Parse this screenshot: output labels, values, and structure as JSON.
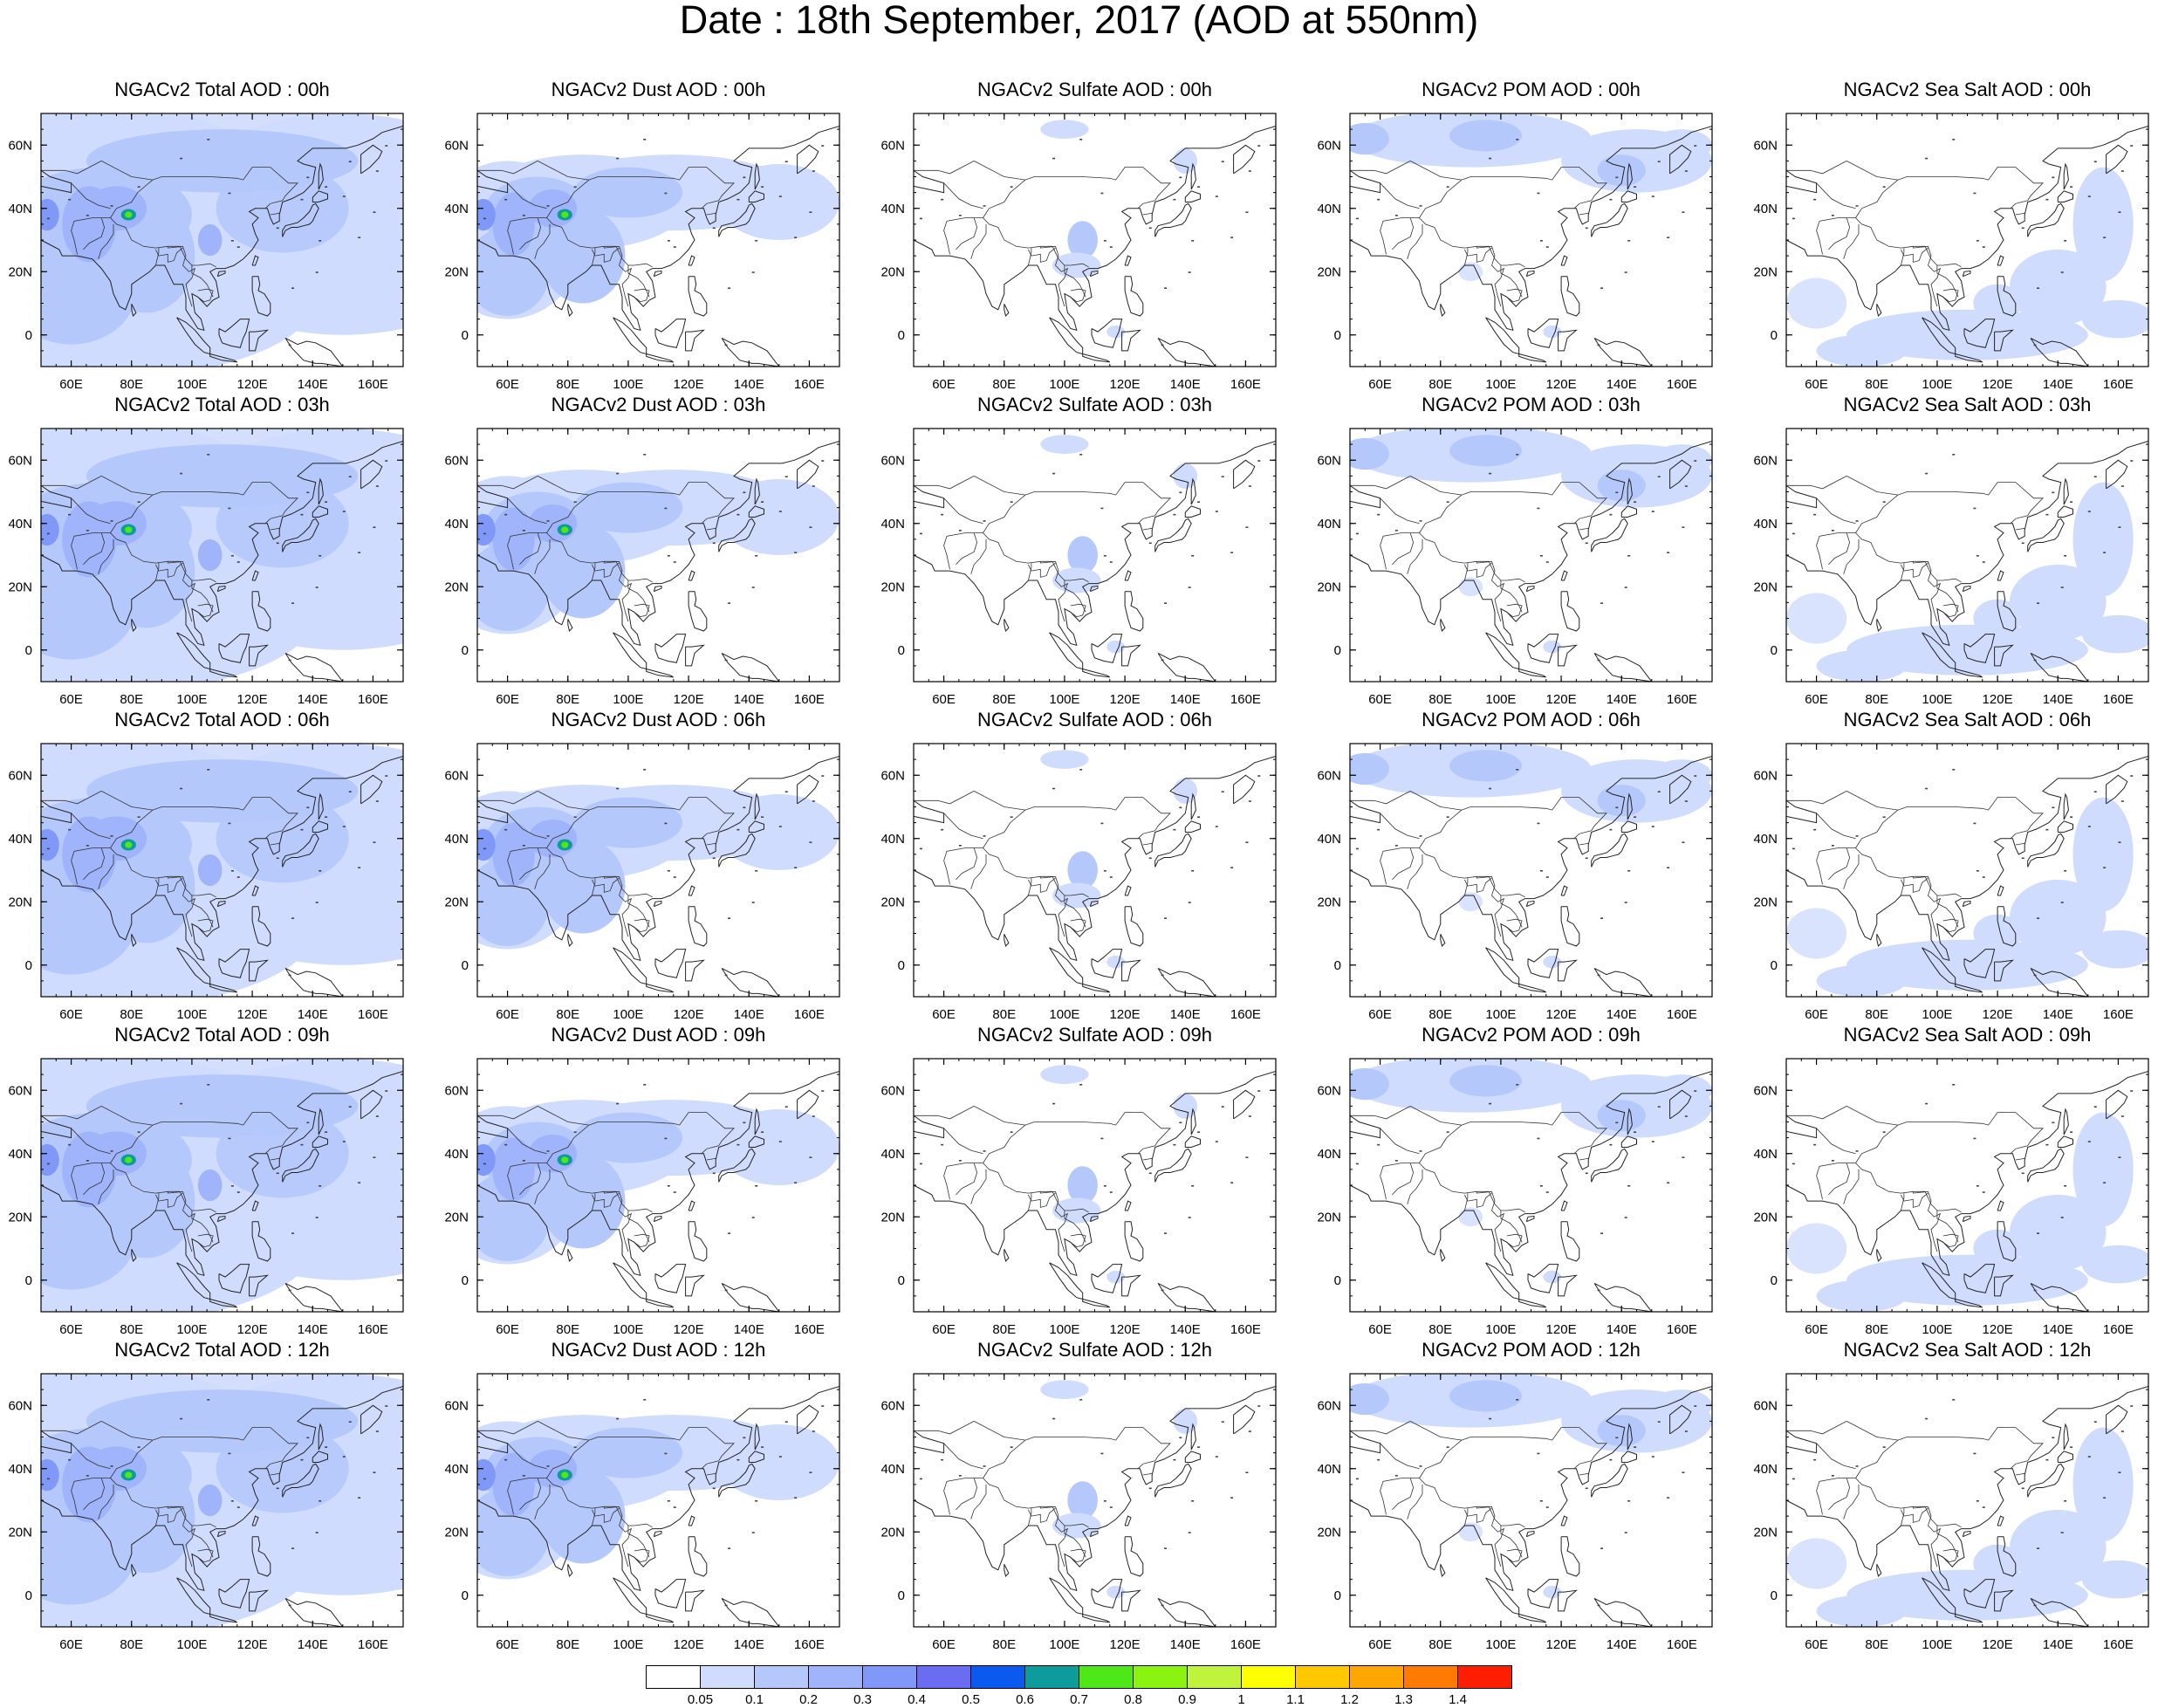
{
  "title": "Date : 18th September, 2017 (AOD at 550nm)",
  "panels": [
    {
      "title": "NGACv2 Total AOD : 00h",
      "species": "total"
    },
    {
      "title": "NGACv2 Dust AOD : 00h",
      "species": "dust"
    },
    {
      "title": "NGACv2 Sulfate AOD : 00h",
      "species": "sulfate"
    },
    {
      "title": "NGACv2 POM AOD : 00h",
      "species": "pom"
    },
    {
      "title": "NGACv2 Sea Salt AOD : 00h",
      "species": "seasalt"
    },
    {
      "title": "NGACv2 Total AOD : 03h",
      "species": "total"
    },
    {
      "title": "NGACv2 Dust AOD : 03h",
      "species": "dust"
    },
    {
      "title": "NGACv2 Sulfate AOD : 03h",
      "species": "sulfate"
    },
    {
      "title": "NGACv2 POM AOD : 03h",
      "species": "pom"
    },
    {
      "title": "NGACv2 Sea Salt AOD : 03h",
      "species": "seasalt"
    },
    {
      "title": "NGACv2 Total AOD : 06h",
      "species": "total"
    },
    {
      "title": "NGACv2 Dust AOD : 06h",
      "species": "dust"
    },
    {
      "title": "NGACv2 Sulfate AOD : 06h",
      "species": "sulfate"
    },
    {
      "title": "NGACv2 POM AOD : 06h",
      "species": "pom"
    },
    {
      "title": "NGACv2 Sea Salt AOD : 06h",
      "species": "seasalt"
    },
    {
      "title": "NGACv2 Total AOD : 09h",
      "species": "total"
    },
    {
      "title": "NGACv2 Dust AOD : 09h",
      "species": "dust"
    },
    {
      "title": "NGACv2 Sulfate AOD : 09h",
      "species": "sulfate"
    },
    {
      "title": "NGACv2 POM AOD : 09h",
      "species": "pom"
    },
    {
      "title": "NGACv2 Sea Salt  AOD : 09h",
      "species": "seasalt"
    },
    {
      "title": "NGACv2 Total AOD  : 12h",
      "species": "total"
    },
    {
      "title": "NGACv2 Dust AOD : 12h",
      "species": "dust"
    },
    {
      "title": "NGACv2 Sulfate AOD : 12h",
      "species": "sulfate"
    },
    {
      "title": "NGACv2 POM  AOD : 12h",
      "species": "pom"
    },
    {
      "title": "NGACv2 Sea Salt  AOD : 12h",
      "species": "seasalt"
    }
  ],
  "map": {
    "lon_range": [
      50,
      170
    ],
    "lat_range": [
      -10,
      70
    ],
    "lon_ticks": [
      "60E",
      "80E",
      "100E",
      "120E",
      "140E",
      "160E"
    ],
    "lat_ticks": [
      "60N",
      "40N",
      "20N",
      "0"
    ]
  },
  "colorbar": {
    "colors": [
      "#ffffff",
      "#cfdcfd",
      "#b5c8fb",
      "#9fb4fa",
      "#8098f8",
      "#6a6cf2",
      "#0a5af0",
      "#0d9b9b",
      "#4ee818",
      "#8af410",
      "#bff33c",
      "#ffff00",
      "#ffc800",
      "#ffa600",
      "#ff7a00",
      "#ff1e00"
    ],
    "labels": [
      "0.05",
      "0.1",
      "0.2",
      "0.3",
      "0.4",
      "0.5",
      "0.6",
      "0.7",
      "0.8",
      "0.9",
      "1",
      "1.1",
      "1.2",
      "1.3",
      "1.4"
    ]
  }
}
